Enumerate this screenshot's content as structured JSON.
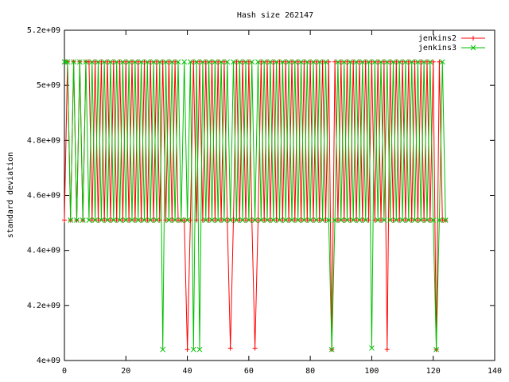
{
  "chart_data": {
    "type": "line",
    "title": "Hash size 262147",
    "xlabel": "",
    "ylabel": "standard deviation",
    "xlim": [
      0,
      140
    ],
    "ylim": [
      4000000000,
      5200000000
    ],
    "x_ticks": [
      0,
      20,
      40,
      60,
      80,
      100,
      120,
      140
    ],
    "x_tick_labels": [
      "0",
      "20",
      "40",
      "60",
      "80",
      "100",
      "120",
      "140"
    ],
    "y_ticks": [
      4000000000,
      4200000000,
      4400000000,
      4600000000,
      4800000000,
      5000000000,
      5200000000
    ],
    "y_tick_labels": [
      "4e+09",
      "4.2e+09",
      "4.4e+09",
      "4.6e+09",
      "4.8e+09",
      "5e+09",
      "5.2e+09"
    ],
    "legend_position": "top-right",
    "grid": false,
    "series": [
      {
        "name": "jenkins2",
        "color": "#ff0000",
        "marker": "plus",
        "x": [
          0,
          1,
          2,
          3,
          4,
          5,
          6,
          7,
          8,
          9,
          10,
          11,
          12,
          13,
          14,
          15,
          16,
          17,
          18,
          19,
          20,
          21,
          22,
          23,
          24,
          25,
          26,
          27,
          28,
          29,
          30,
          31,
          32,
          33,
          34,
          35,
          36,
          37,
          38,
          39,
          40,
          41,
          42,
          43,
          44,
          45,
          46,
          47,
          48,
          49,
          50,
          51,
          52,
          53,
          54,
          55,
          56,
          57,
          58,
          59,
          60,
          61,
          62,
          63,
          64,
          65,
          66,
          67,
          68,
          69,
          70,
          71,
          72,
          73,
          74,
          75,
          76,
          77,
          78,
          79,
          80,
          81,
          82,
          83,
          84,
          85,
          86,
          87,
          88,
          89,
          90,
          91,
          92,
          93,
          94,
          95,
          96,
          97,
          98,
          99,
          100,
          101,
          102,
          103,
          104,
          105,
          106,
          107,
          108,
          109,
          110,
          111,
          112,
          113,
          114,
          115,
          116,
          117,
          118,
          119,
          120,
          121,
          122,
          123,
          124
        ],
        "values": [
          4510000000,
          5085000000,
          4510000000,
          5085000000,
          4510000000,
          5085000000,
          4510000000,
          5085000000,
          5085000000,
          4510000000,
          5085000000,
          4510000000,
          5085000000,
          4510000000,
          5085000000,
          4510000000,
          5085000000,
          4510000000,
          5085000000,
          4510000000,
          5085000000,
          4510000000,
          5085000000,
          4510000000,
          5085000000,
          4510000000,
          5085000000,
          4510000000,
          5085000000,
          4510000000,
          5085000000,
          4510000000,
          5085000000,
          4510000000,
          5085000000,
          4510000000,
          5085000000,
          4510000000,
          4510000000,
          4510000000,
          4040000000,
          4510000000,
          5085000000,
          4510000000,
          5085000000,
          4510000000,
          5085000000,
          4510000000,
          5085000000,
          4510000000,
          5085000000,
          4510000000,
          5085000000,
          4510000000,
          4045000000,
          4510000000,
          5085000000,
          4510000000,
          5085000000,
          4510000000,
          5085000000,
          4510000000,
          4045000000,
          4510000000,
          5085000000,
          4510000000,
          5085000000,
          4510000000,
          5085000000,
          4510000000,
          5085000000,
          4510000000,
          5085000000,
          4510000000,
          5085000000,
          4510000000,
          5085000000,
          4510000000,
          5085000000,
          4510000000,
          5085000000,
          4510000000,
          5085000000,
          4510000000,
          5085000000,
          4510000000,
          5085000000,
          4040000000,
          5085000000,
          4510000000,
          5085000000,
          4510000000,
          5085000000,
          4510000000,
          5085000000,
          4510000000,
          5085000000,
          4510000000,
          5085000000,
          4510000000,
          5085000000,
          4510000000,
          5085000000,
          4510000000,
          5085000000,
          4040000000,
          5085000000,
          4510000000,
          5085000000,
          4510000000,
          5085000000,
          4510000000,
          5085000000,
          4510000000,
          5085000000,
          4510000000,
          5085000000,
          4510000000,
          5085000000,
          4510000000,
          5085000000,
          4040000000,
          5085000000,
          4510000000,
          4510000000
        ]
      },
      {
        "name": "jenkins3",
        "color": "#00c000",
        "marker": "cross",
        "x": [
          0,
          1,
          2,
          3,
          4,
          5,
          6,
          7,
          8,
          9,
          10,
          11,
          12,
          13,
          14,
          15,
          16,
          17,
          18,
          19,
          20,
          21,
          22,
          23,
          24,
          25,
          26,
          27,
          28,
          29,
          30,
          31,
          32,
          33,
          34,
          35,
          36,
          37,
          38,
          39,
          40,
          41,
          42,
          43,
          44,
          45,
          46,
          47,
          48,
          49,
          50,
          51,
          52,
          53,
          54,
          55,
          56,
          57,
          58,
          59,
          60,
          61,
          62,
          63,
          64,
          65,
          66,
          67,
          68,
          69,
          70,
          71,
          72,
          73,
          74,
          75,
          76,
          77,
          78,
          79,
          80,
          81,
          82,
          83,
          84,
          85,
          86,
          87,
          88,
          89,
          90,
          91,
          92,
          93,
          94,
          95,
          96,
          97,
          98,
          99,
          100,
          101,
          102,
          103,
          104,
          105,
          106,
          107,
          108,
          109,
          110,
          111,
          112,
          113,
          114,
          115,
          116,
          117,
          118,
          119,
          120,
          121,
          122,
          123,
          124
        ],
        "values": [
          5085000000,
          5085000000,
          4510000000,
          5085000000,
          4510000000,
          5085000000,
          4510000000,
          5085000000,
          4510000000,
          5085000000,
          4510000000,
          5085000000,
          4510000000,
          5085000000,
          4510000000,
          5085000000,
          4510000000,
          5085000000,
          4510000000,
          5085000000,
          4510000000,
          5085000000,
          4510000000,
          5085000000,
          4510000000,
          5085000000,
          4510000000,
          5085000000,
          4510000000,
          5085000000,
          4510000000,
          5085000000,
          4040000000,
          5085000000,
          4510000000,
          5085000000,
          4510000000,
          5085000000,
          4510000000,
          5085000000,
          4510000000,
          5085000000,
          4040000000,
          5085000000,
          4040000000,
          5085000000,
          4510000000,
          5085000000,
          4510000000,
          5085000000,
          4510000000,
          5085000000,
          4510000000,
          5085000000,
          4510000000,
          5085000000,
          4510000000,
          5085000000,
          4510000000,
          5085000000,
          4510000000,
          5085000000,
          4510000000,
          5085000000,
          4510000000,
          5085000000,
          4510000000,
          5085000000,
          4510000000,
          5085000000,
          4510000000,
          5085000000,
          4510000000,
          5085000000,
          4510000000,
          5085000000,
          4510000000,
          5085000000,
          4510000000,
          5085000000,
          4510000000,
          5085000000,
          4510000000,
          5085000000,
          4510000000,
          5085000000,
          4510000000,
          4040000000,
          4510000000,
          5085000000,
          4510000000,
          5085000000,
          4510000000,
          5085000000,
          4510000000,
          5085000000,
          4510000000,
          5085000000,
          4510000000,
          5085000000,
          4045000000,
          5085000000,
          4510000000,
          5085000000,
          4510000000,
          5085000000,
          4510000000,
          5085000000,
          4510000000,
          5085000000,
          4510000000,
          5085000000,
          4510000000,
          5085000000,
          4510000000,
          5085000000,
          4510000000,
          5085000000,
          4510000000,
          5085000000,
          4510000000,
          4040000000,
          4510000000,
          5085000000,
          4510000000
        ]
      }
    ]
  }
}
